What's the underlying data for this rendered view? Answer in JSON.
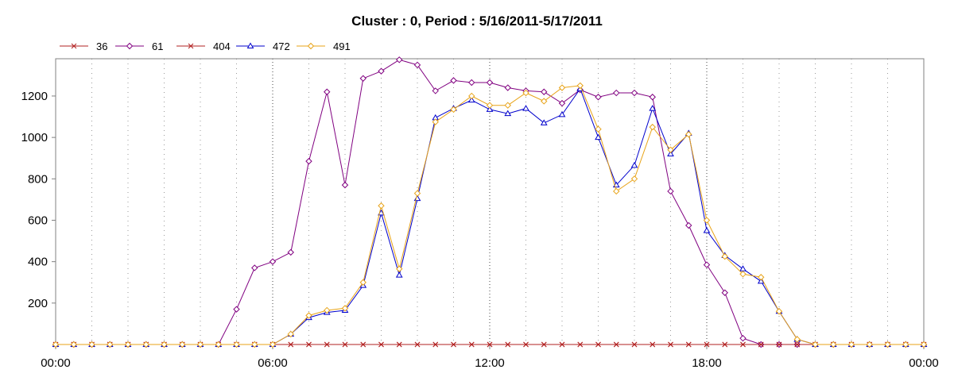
{
  "chart_data": {
    "type": "line",
    "title": "Cluster : 0, Period : 5/16/2011-5/17/2011",
    "xlabel": "",
    "ylabel": "",
    "x_tick_labels": [
      "00:00",
      "06:00",
      "12:00",
      "18:00",
      "00:00"
    ],
    "x_range_hours": [
      0,
      24
    ],
    "x_step_hours": 0.5,
    "ylim": [
      0,
      1380
    ],
    "y_ticks": [
      200,
      400,
      600,
      800,
      1000,
      1200
    ],
    "grid": {
      "vertical": true,
      "horizontal": false
    },
    "legend_position": "top-left",
    "series": [
      {
        "name": "36",
        "color": "#b22222",
        "marker": "x",
        "values": [
          0,
          0,
          0,
          0,
          0,
          0,
          0,
          0,
          0,
          0,
          0,
          0,
          0,
          0,
          0,
          0,
          0,
          0,
          0,
          0,
          0,
          0,
          0,
          0,
          0,
          0,
          0,
          0,
          0,
          0,
          0,
          0,
          0,
          0,
          0,
          0,
          0,
          0,
          0,
          0,
          0,
          0,
          0,
          0,
          0,
          0,
          0,
          0,
          0
        ]
      },
      {
        "name": "61",
        "color": "#800080",
        "marker": "diamond",
        "values": [
          0,
          0,
          0,
          0,
          0,
          0,
          0,
          0,
          0,
          0,
          170,
          370,
          400,
          445,
          885,
          1220,
          770,
          1285,
          1320,
          1375,
          1350,
          1225,
          1275,
          1265,
          1265,
          1240,
          1225,
          1220,
          1165,
          1230,
          1195,
          1215,
          1215,
          1195,
          740,
          575,
          385,
          250,
          30,
          0,
          0,
          0,
          0,
          0,
          0,
          0,
          0,
          0,
          0
        ]
      },
      {
        "name": "404",
        "color": "#b22222",
        "marker": "x",
        "values": [
          0,
          0,
          0,
          0,
          0,
          0,
          0,
          0,
          0,
          0,
          0,
          0,
          0,
          0,
          0,
          0,
          0,
          0,
          0,
          0,
          0,
          0,
          0,
          0,
          0,
          0,
          0,
          0,
          0,
          0,
          0,
          0,
          0,
          0,
          0,
          0,
          0,
          0,
          0,
          0,
          0,
          0,
          0,
          0,
          0,
          0,
          0,
          0,
          0
        ]
      },
      {
        "name": "472",
        "color": "#0000cc",
        "marker": "triangle",
        "values": [
          0,
          0,
          0,
          0,
          0,
          0,
          0,
          0,
          0,
          0,
          0,
          0,
          0,
          50,
          130,
          155,
          165,
          285,
          635,
          335,
          705,
          1095,
          1140,
          1180,
          1135,
          1115,
          1140,
          1070,
          1110,
          1235,
          1000,
          770,
          865,
          1140,
          920,
          1020,
          550,
          430,
          365,
          305,
          160,
          25,
          0,
          0,
          0,
          0,
          0,
          0,
          0
        ]
      },
      {
        "name": "491",
        "color": "#e8a317",
        "marker": "diamond",
        "values": [
          0,
          0,
          0,
          0,
          0,
          0,
          0,
          0,
          0,
          0,
          0,
          0,
          0,
          50,
          140,
          165,
          175,
          300,
          670,
          365,
          730,
          1075,
          1135,
          1200,
          1155,
          1155,
          1215,
          1175,
          1240,
          1250,
          1040,
          740,
          800,
          1050,
          940,
          1015,
          600,
          425,
          340,
          325,
          160,
          25,
          0,
          0,
          0,
          0,
          0,
          0,
          0
        ]
      }
    ]
  }
}
